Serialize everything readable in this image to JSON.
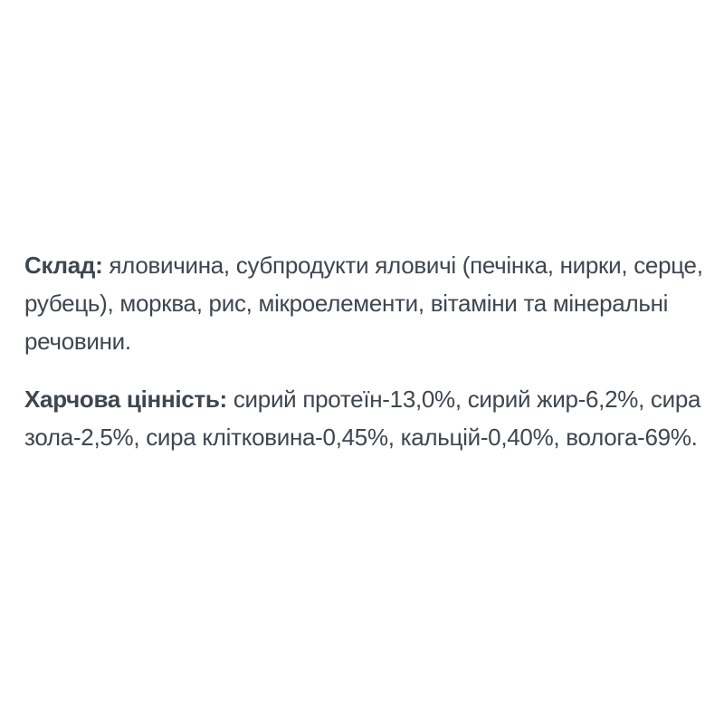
{
  "page": {
    "background_color": "#ffffff",
    "text_color": "#3e4650"
  },
  "content": {
    "paragraphs": [
      {
        "label": "Склад:",
        "lines": [
          "яловичина, субпродукти яловичі (печінка, нирки, серце,",
          "рубець), морква, рис, мікроелементи, вітаміни та мінеральні",
          "речовини."
        ]
      },
      {
        "label": "Харчова цінність:",
        "lines": [
          "сирий протеїн-13,0%, сирий жир-6,2%, сира",
          "зола-2,5%, сира клітковина-0,45%, кальцій-0,40%, волога-69%."
        ]
      }
    ]
  }
}
